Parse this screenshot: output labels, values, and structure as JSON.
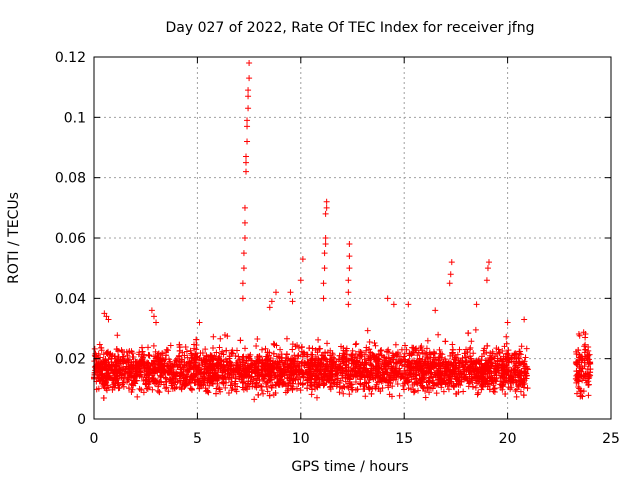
{
  "chart_data": {
    "type": "scatter",
    "title": "Day 027 of 2022, Rate Of TEC Index for receiver jfng",
    "xlabel": "GPS time / hours",
    "ylabel": "ROTI / TECUs",
    "xlim": [
      0,
      25
    ],
    "ylim": [
      0,
      0.12
    ],
    "xticks": [
      0,
      5,
      10,
      15,
      20,
      25
    ],
    "xtick_labels": [
      "0",
      "5",
      "10",
      "15",
      "20",
      "25"
    ],
    "yticks": [
      0,
      0.02,
      0.04,
      0.06,
      0.08,
      0.1,
      0.12
    ],
    "ytick_labels": [
      "0",
      "0.02",
      "0.04",
      "0.06",
      "0.08",
      "0.1",
      "0.12"
    ],
    "grid": true,
    "marker": "+",
    "color": "#ff0000",
    "data_gap_hours": [
      21.0,
      23.3
    ],
    "baseline_band": {
      "x_range": [
        0,
        24
      ],
      "y_low": 0.006,
      "y_high": 0.026,
      "typical": 0.015
    },
    "series": [
      {
        "name": "ROTI",
        "points": [
          [
            7.2,
            0.04
          ],
          [
            7.2,
            0.045
          ],
          [
            7.25,
            0.05
          ],
          [
            7.25,
            0.055
          ],
          [
            7.3,
            0.06
          ],
          [
            7.3,
            0.065
          ],
          [
            7.3,
            0.07
          ],
          [
            7.35,
            0.082
          ],
          [
            7.35,
            0.085
          ],
          [
            7.35,
            0.087
          ],
          [
            7.4,
            0.092
          ],
          [
            7.4,
            0.097
          ],
          [
            7.4,
            0.099
          ],
          [
            7.45,
            0.103
          ],
          [
            7.45,
            0.107
          ],
          [
            7.45,
            0.109
          ],
          [
            7.5,
            0.113
          ],
          [
            7.5,
            0.118
          ],
          [
            11.1,
            0.04
          ],
          [
            11.1,
            0.045
          ],
          [
            11.15,
            0.05
          ],
          [
            11.15,
            0.055
          ],
          [
            11.2,
            0.058
          ],
          [
            11.2,
            0.06
          ],
          [
            11.2,
            0.068
          ],
          [
            11.25,
            0.07
          ],
          [
            11.25,
            0.072
          ],
          [
            12.3,
            0.038
          ],
          [
            12.3,
            0.042
          ],
          [
            12.3,
            0.046
          ],
          [
            12.35,
            0.05
          ],
          [
            12.35,
            0.054
          ],
          [
            12.35,
            0.058
          ],
          [
            10.1,
            0.053
          ],
          [
            10.0,
            0.046
          ],
          [
            9.5,
            0.042
          ],
          [
            9.6,
            0.039
          ],
          [
            8.5,
            0.037
          ],
          [
            8.6,
            0.039
          ],
          [
            8.8,
            0.042
          ],
          [
            17.2,
            0.045
          ],
          [
            17.25,
            0.048
          ],
          [
            17.3,
            0.052
          ],
          [
            19.0,
            0.046
          ],
          [
            19.05,
            0.05
          ],
          [
            19.1,
            0.052
          ],
          [
            18.5,
            0.038
          ],
          [
            15.2,
            0.038
          ],
          [
            14.2,
            0.04
          ],
          [
            14.5,
            0.038
          ],
          [
            0.5,
            0.035
          ],
          [
            0.6,
            0.034
          ],
          [
            0.7,
            0.033
          ],
          [
            2.8,
            0.036
          ],
          [
            2.9,
            0.034
          ],
          [
            3.0,
            0.032
          ],
          [
            5.1,
            0.032
          ],
          [
            16.5,
            0.036
          ],
          [
            20.0,
            0.032
          ],
          [
            20.8,
            0.033
          ]
        ]
      }
    ]
  }
}
